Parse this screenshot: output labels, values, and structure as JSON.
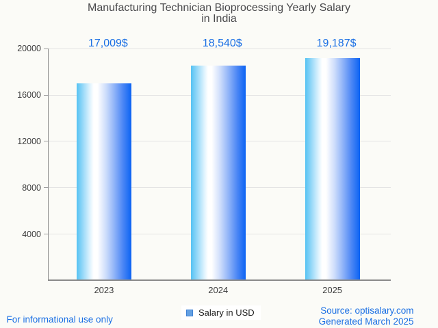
{
  "chart_data": {
    "type": "bar",
    "title": "Manufacturing Technician Bioprocessing Yearly Salary in India",
    "categories": [
      "2023",
      "2024",
      "2025"
    ],
    "series": [
      {
        "name": "Salary in USD",
        "values": [
          17009,
          18540,
          19187
        ]
      }
    ],
    "value_labels": [
      "17,009$",
      "18,540$",
      "19,187$"
    ],
    "ylim": [
      0,
      20000
    ],
    "yticks": [
      4000,
      8000,
      12000,
      16000,
      20000
    ],
    "grid": true,
    "legend_position": "bottom",
    "bar_gradient": [
      "#54c1f2",
      "#ffffff",
      "#0b63f3"
    ],
    "accent_blue": "#1a6fe4",
    "background": "#fbfbf7"
  },
  "legend": {
    "label": "Salary in USD",
    "marker_color": "#64a0e2"
  },
  "footer": {
    "disclaimer": "For informational use only",
    "source": "Source: optisalary.com",
    "generated": "Generated March 2025"
  }
}
